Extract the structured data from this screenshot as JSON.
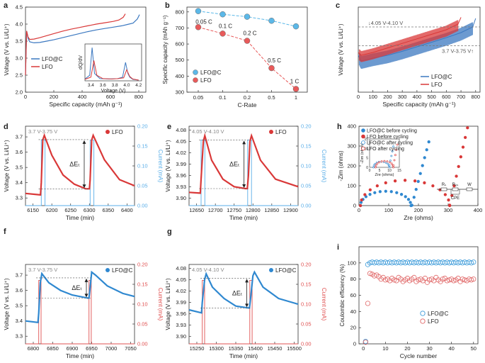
{
  "chart_data": [
    {
      "id": "a",
      "type": "line",
      "panel_label": "a",
      "xlabel": "Specific capacity (mAh g⁻¹)",
      "ylabel": "Voltage (V vs. Li/Li⁺)",
      "xlim": [
        0,
        850
      ],
      "ylim": [
        2.0,
        4.5
      ],
      "xticks": [
        0,
        200,
        400,
        600,
        800
      ],
      "yticks": [
        2.0,
        2.5,
        3.0,
        3.5,
        4.0,
        4.5
      ],
      "legend": [
        "LFO@C",
        "LFO"
      ],
      "series": [
        {
          "name": "LFO@C",
          "color": "#3b78c0",
          "x": [
            0,
            8,
            18,
            30,
            60,
            100,
            150,
            200,
            260,
            320,
            380,
            440,
            500,
            560,
            620,
            680,
            720,
            760,
            790,
            805
          ],
          "y": [
            2.5,
            3.8,
            3.58,
            3.48,
            3.45,
            3.46,
            3.5,
            3.54,
            3.6,
            3.66,
            3.72,
            3.78,
            3.83,
            3.87,
            3.91,
            3.95,
            3.99,
            4.03,
            4.15,
            4.28
          ]
        },
        {
          "name": "LFO",
          "color": "#d93838",
          "x": [
            0,
            8,
            18,
            30,
            60,
            100,
            150,
            200,
            260,
            320,
            380,
            440,
            500,
            560,
            620,
            660,
            690,
            705
          ],
          "y": [
            2.5,
            3.8,
            3.62,
            3.55,
            3.56,
            3.6,
            3.66,
            3.72,
            3.79,
            3.85,
            3.9,
            3.95,
            4.0,
            4.04,
            4.08,
            4.12,
            4.2,
            4.3
          ]
        }
      ],
      "inset": {
        "xlabel": "Voltage (V)",
        "ylabel": "dQ/dV",
        "xticks": [
          3.4,
          3.6,
          3.8,
          4.0,
          4.2
        ],
        "xlim": [
          3.3,
          4.25
        ],
        "series": [
          {
            "name": "LFO@C",
            "color": "#3b78c0",
            "x": [
              3.3,
              3.38,
              3.42,
              3.46,
              3.55,
              3.7,
              3.85,
              3.93,
              3.98,
              4.02,
              4.05,
              4.1,
              4.2
            ],
            "y": [
              0.05,
              0.15,
              0.9,
              0.2,
              0.06,
              0.05,
              0.06,
              0.1,
              0.5,
              0.2,
              0.1,
              0.04,
              0.02
            ]
          },
          {
            "name": "LFO",
            "color": "#d93838",
            "x": [
              3.3,
              3.4,
              3.45,
              3.5,
              3.6,
              3.75,
              3.85,
              3.95,
              4.0,
              4.05,
              4.1,
              4.2
            ],
            "y": [
              0.04,
              0.1,
              0.55,
              0.15,
              0.06,
              0.05,
              0.06,
              0.08,
              0.3,
              0.12,
              0.05,
              0.02
            ]
          }
        ]
      }
    },
    {
      "id": "b",
      "type": "line",
      "panel_label": "b",
      "xlabel": "C-Rate",
      "ylabel": "Specific capacity (mAh g⁻¹)",
      "categories": [
        "0.05",
        "0.1",
        "0.2",
        "0.5",
        "1"
      ],
      "yticks": [
        300,
        400,
        500,
        600,
        700,
        800
      ],
      "ylim": [
        300,
        830
      ],
      "legend": [
        "LFO@C",
        "LFO"
      ],
      "series": [
        {
          "name": "LFO@C",
          "color": "#5bb8e8",
          "values": [
            805,
            785,
            770,
            745,
            710
          ]
        },
        {
          "name": "LFO",
          "color": "#e85a5a",
          "values": [
            705,
            665,
            620,
            450,
            320
          ]
        }
      ],
      "annotations": [
        "0.05 C",
        "0.1 C",
        "0.2 C",
        "0.5 C",
        "1 C"
      ]
    },
    {
      "id": "c",
      "type": "line",
      "panel_label": "c",
      "xlabel": "Specific capacity (mAh g⁻¹)",
      "ylabel": "Voltage (V vs. Li/Li⁺)",
      "xticks": [
        0,
        100,
        200,
        300,
        400,
        500,
        600,
        700,
        800
      ],
      "xlim": [
        0,
        830
      ],
      "ylim": [
        2.9,
        4.4
      ],
      "legend": [
        "LFO@C",
        "LFO"
      ],
      "annotations": [
        "4.05 V-4.10 V",
        "3.7 V-3.75 V"
      ],
      "series": [
        {
          "name": "LFO@C",
          "color": "#3b78c0",
          "x": [
            0,
            20,
            100,
            200,
            300,
            400,
            500,
            600,
            700,
            780,
            800
          ],
          "y": [
            3.55,
            3.45,
            3.5,
            3.55,
            3.62,
            3.7,
            3.78,
            3.86,
            3.95,
            4.05,
            4.2
          ]
        },
        {
          "name": "LFO",
          "color": "#d93838",
          "x": [
            0,
            20,
            100,
            200,
            300,
            400,
            500,
            600,
            680,
            700
          ],
          "y": [
            3.6,
            3.55,
            3.6,
            3.68,
            3.76,
            3.84,
            3.92,
            4.0,
            4.1,
            4.22
          ]
        }
      ]
    },
    {
      "id": "d",
      "type": "line",
      "panel_label": "d",
      "window_label": "3.7 V-3.75 V",
      "xlabel": "Time (min)",
      "ylabel": "Voltage (V vs. Li/Li⁺)",
      "ylabel2": "Current (mA)",
      "xticks": [
        6150,
        6200,
        6250,
        6300,
        6350,
        6400
      ],
      "xlim": [
        6130,
        6420
      ],
      "yticks": [
        3.3,
        3.4,
        3.5,
        3.6,
        3.7
      ],
      "ylim": [
        3.25,
        3.77
      ],
      "y2ticks": [
        0.0,
        0.05,
        0.1,
        0.15,
        0.2
      ],
      "y2lim": [
        0,
        0.2
      ],
      "legend": [
        "LFO"
      ],
      "delta_label": "ΔEₜ",
      "voltage": {
        "color": "#d93838",
        "x": [
          6130,
          6170,
          6172,
          6176,
          6180,
          6200,
          6230,
          6260,
          6290,
          6300,
          6302,
          6306,
          6310,
          6340,
          6380,
          6420
        ],
        "y": [
          3.33,
          3.32,
          3.4,
          3.68,
          3.71,
          3.58,
          3.45,
          3.39,
          3.36,
          3.36,
          3.42,
          3.68,
          3.71,
          3.55,
          3.42,
          3.38
        ]
      },
      "current": {
        "color": "#5aaee8",
        "x": [
          6130,
          6172,
          6172,
          6182,
          6182,
          6302,
          6302,
          6312,
          6312,
          6420
        ],
        "y": [
          0,
          0,
          0.165,
          0.165,
          0,
          0,
          0.165,
          0.165,
          0,
          0
        ]
      }
    },
    {
      "id": "e",
      "type": "line",
      "panel_label": "e",
      "window_label": "4.05 V-4.10 V",
      "xlabel": "Time (min)",
      "ylabel": "Voltage (V vs. Li/Li⁺)",
      "ylabel2": "Current (mA)",
      "xticks": [
        12650,
        12700,
        12750,
        12800,
        12850,
        12900
      ],
      "xlim": [
        12630,
        12920
      ],
      "yticks": [
        3.9,
        3.93,
        3.96,
        3.99,
        4.02,
        4.05,
        4.08
      ],
      "ylim": [
        3.88,
        4.09
      ],
      "y2ticks": [
        0.0,
        0.05,
        0.1,
        0.15,
        0.2
      ],
      "y2lim": [
        0,
        0.2
      ],
      "legend": [
        "LFO"
      ],
      "delta_label": "ΔEₜ",
      "voltage": {
        "color": "#d93838",
        "x": [
          12630,
          12660,
          12662,
          12668,
          12672,
          12690,
          12720,
          12750,
          12780,
          12785,
          12788,
          12792,
          12796,
          12820,
          12860,
          12920
        ],
        "y": [
          3.915,
          3.913,
          3.95,
          4.05,
          4.065,
          4.0,
          3.95,
          3.93,
          3.925,
          3.925,
          3.96,
          4.05,
          4.065,
          4.0,
          3.95,
          3.93
        ]
      },
      "current": {
        "color": "#5aaee8",
        "x": [
          12630,
          12662,
          12662,
          12672,
          12672,
          12786,
          12786,
          12796,
          12796,
          12920
        ],
        "y": [
          0,
          0,
          0.165,
          0.165,
          0,
          0,
          0.165,
          0.165,
          0,
          0
        ]
      }
    },
    {
      "id": "f",
      "type": "line",
      "panel_label": "f",
      "window_label": "3.7 V-3.75 V",
      "xlabel": "Time (min)",
      "ylabel": "Voltage (V vs. Li/Li⁺)",
      "ylabel2": "Current (mA)",
      "xticks": [
        6800,
        6850,
        6900,
        6950,
        7000,
        7050
      ],
      "xlim": [
        6780,
        7060
      ],
      "yticks": [
        3.3,
        3.4,
        3.5,
        3.6,
        3.7
      ],
      "ylim": [
        3.25,
        3.77
      ],
      "y2ticks": [
        0.0,
        0.05,
        0.1,
        0.15,
        0.2
      ],
      "y2lim": [
        0,
        0.2
      ],
      "legend": [
        "LFO@C"
      ],
      "delta_label": "ΔEₜ",
      "voltage": {
        "color": "#2f88d0",
        "x": [
          6780,
          6812,
          6814,
          6818,
          6822,
          6840,
          6870,
          6900,
          6940,
          6943,
          6946,
          6950,
          6960,
          6990,
          7030,
          7060
        ],
        "y": [
          3.4,
          3.39,
          3.45,
          3.65,
          3.71,
          3.65,
          3.6,
          3.57,
          3.55,
          3.55,
          3.62,
          3.72,
          3.7,
          3.63,
          3.58,
          3.56
        ]
      },
      "current": {
        "color": "#e05050",
        "x": [
          6780,
          6814,
          6814,
          6820,
          6820,
          6943,
          6943,
          6949,
          6949,
          7060
        ],
        "y": [
          0,
          0,
          0.16,
          0.16,
          0,
          0,
          0.16,
          0.16,
          0,
          0
        ]
      }
    },
    {
      "id": "g",
      "type": "line",
      "panel_label": "g",
      "window_label": "4.05 V-4.10 V",
      "xlabel": "Time (min)",
      "ylabel": "Voltage (V vs. Li/Li⁺)",
      "ylabel2": "Current (mA)",
      "xticks": [
        15250,
        15300,
        15350,
        15400,
        15450,
        15500
      ],
      "xlim": [
        15230,
        15510
      ],
      "yticks": [
        3.9,
        3.93,
        3.96,
        3.99,
        4.02,
        4.05,
        4.08
      ],
      "ylim": [
        3.88,
        4.09
      ],
      "y2ticks": [
        0.0,
        0.05,
        0.1,
        0.15,
        0.2
      ],
      "y2lim": [
        0,
        0.2
      ],
      "legend": [
        "LFO@C"
      ],
      "delta_label": "ΔEₜ",
      "voltage": {
        "color": "#2f88d0",
        "x": [
          15230,
          15262,
          15264,
          15270,
          15274,
          15290,
          15320,
          15350,
          15382,
          15385,
          15388,
          15394,
          15398,
          15420,
          15460,
          15510
        ],
        "y": [
          3.97,
          3.962,
          3.99,
          4.05,
          4.065,
          4.03,
          4.0,
          3.98,
          3.975,
          3.975,
          4.0,
          4.06,
          4.07,
          4.03,
          4.0,
          3.985
        ]
      },
      "current": {
        "color": "#e05050",
        "x": [
          15230,
          15264,
          15264,
          15270,
          15270,
          15386,
          15386,
          15392,
          15392,
          15510
        ],
        "y": [
          0,
          0,
          0.16,
          0.16,
          0,
          0,
          0.16,
          0.16,
          0,
          0
        ]
      }
    },
    {
      "id": "h",
      "type": "scatter",
      "panel_label": "h",
      "xlabel": "Zre (ohms)",
      "ylabel": "-Zim (ohms)",
      "xticks": [
        0,
        100,
        200,
        300,
        400
      ],
      "xlim": [
        0,
        400
      ],
      "yticks": [
        0,
        100,
        200,
        300,
        400
      ],
      "ylim": [
        0,
        400
      ],
      "legend": [
        "LFO@C before cycling",
        "LFO before cycling",
        "LFO@C after cycling",
        "LFO after cycling"
      ],
      "circuit_labels": [
        "Rₛ",
        "Rₑₛ",
        "CPE",
        "W"
      ],
      "series": [
        {
          "name": "LFO@C before cycling",
          "color": "#2f88d0",
          "filled": true
        },
        {
          "name": "LFO before cycling",
          "color": "#d93838",
          "filled": true
        },
        {
          "name": "LFO@C after cycling",
          "color": "#2f88d0",
          "filled": false
        },
        {
          "name": "LFO after cycling",
          "color": "#d93838",
          "filled": false
        }
      ],
      "inset": {
        "xlabel": "Zre (ohms)",
        "ylabel": "-Zim (ohms)",
        "xticks": [
          0,
          5,
          10,
          15
        ],
        "yticks": [
          0,
          5,
          10,
          15
        ]
      }
    },
    {
      "id": "i",
      "type": "scatter",
      "panel_label": "i",
      "xlabel": "Cycle number",
      "ylabel": "Coulombic efficiency (%)",
      "xticks": [
        0,
        10,
        20,
        30,
        40,
        50
      ],
      "xlim": [
        -2,
        52
      ],
      "yticks": [
        0,
        20,
        40,
        60,
        80,
        100
      ],
      "ylim": [
        0,
        120
      ],
      "legend": [
        "LFO@C",
        "LFO"
      ],
      "series": [
        {
          "name": "LFO@C",
          "color": "#3b9ad9",
          "x": [
            1,
            2,
            3,
            4,
            5,
            6,
            7,
            8,
            9,
            10,
            11,
            12,
            13,
            14,
            15,
            16,
            17,
            18,
            19,
            20,
            21,
            22,
            23,
            24,
            25,
            26,
            27,
            28,
            29,
            30,
            31,
            32,
            33,
            34,
            35,
            36,
            37,
            38,
            39,
            40,
            41,
            42,
            43,
            44,
            45,
            46,
            47,
            48,
            49,
            50
          ],
          "y": [
            3,
            98,
            100,
            101,
            100,
            101,
            100,
            101,
            100,
            101,
            100,
            101,
            100,
            101,
            100,
            101,
            100,
            101,
            100,
            101,
            100,
            101,
            100,
            101,
            100,
            101,
            100,
            101,
            100,
            101,
            100,
            101,
            100,
            101,
            100,
            101,
            100,
            101,
            100,
            101,
            100,
            101,
            100,
            101,
            100,
            101,
            100,
            101,
            100,
            101
          ]
        },
        {
          "name": "LFO",
          "color": "#e06666",
          "x": [
            1,
            2,
            3,
            4,
            5,
            6,
            7,
            8,
            9,
            10,
            11,
            12,
            13,
            14,
            15,
            16,
            17,
            18,
            19,
            20,
            21,
            22,
            23,
            24,
            25,
            26,
            27,
            28,
            29,
            30,
            31,
            32,
            33,
            34,
            35,
            36,
            37,
            38,
            39,
            40,
            41,
            42,
            43,
            44,
            45,
            46,
            47,
            48,
            49,
            50
          ],
          "y": [
            2,
            50,
            87,
            86,
            84,
            85,
            83,
            80,
            82,
            79,
            80,
            78,
            81,
            79,
            78,
            82,
            80,
            77,
            79,
            81,
            78,
            80,
            82,
            77,
            79,
            80,
            78,
            81,
            76,
            79,
            80,
            78,
            82,
            79,
            77,
            80,
            81,
            78,
            79,
            80,
            78,
            79,
            81,
            77,
            80,
            79,
            78,
            80,
            79,
            80
          ]
        }
      ]
    }
  ]
}
